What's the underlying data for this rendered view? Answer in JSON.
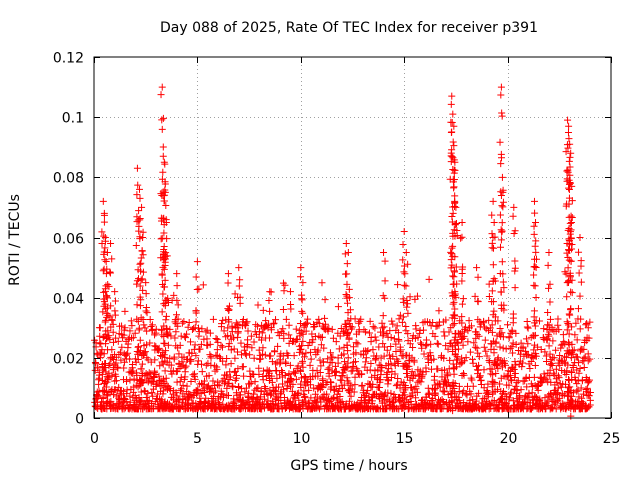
{
  "chart_data": {
    "type": "scatter",
    "title": "Day 088 of 2025, Rate Of TEC Index for receiver p391",
    "xlabel": "GPS time / hours",
    "ylabel": "ROTI / TECUs",
    "xlim": [
      0,
      25
    ],
    "ylim": [
      0,
      0.12
    ],
    "xticks": [
      0,
      5,
      10,
      15,
      20,
      25
    ],
    "xtick_labels": [
      "0",
      "5",
      "10",
      "15",
      "20",
      "25"
    ],
    "yticks": [
      0,
      0.02,
      0.04,
      0.06,
      0.08,
      0.1,
      0.12
    ],
    "ytick_labels": [
      "0",
      "0.02",
      "0.04",
      "0.06",
      "0.08",
      "0.1",
      "0.12"
    ],
    "grid": true,
    "marker": "+",
    "color": "#ff0000",
    "series": [
      {
        "name": "ROTI",
        "x": [
          0.1,
          0.3,
          0.45,
          0.5,
          0.55,
          0.6,
          0.65,
          0.8,
          1.0,
          1.5,
          2.1,
          2.2,
          2.3,
          2.35,
          2.5,
          3.3,
          3.35,
          3.4,
          3.45,
          3.5,
          4.0,
          5.0,
          6.5,
          7.0,
          8.5,
          9.5,
          10.0,
          10.1,
          12.2,
          12.3,
          12.35,
          14.0,
          15.0,
          15.1,
          17.3,
          17.35,
          17.4,
          17.45,
          17.5,
          17.8,
          18.5,
          19.3,
          19.35,
          19.7,
          19.75,
          20.3,
          21.3,
          21.35,
          22.0,
          22.9,
          22.95,
          23.0,
          23.05,
          23.1,
          23.5,
          23.9
        ],
        "y": [
          0.025,
          0.03,
          0.072,
          0.068,
          0.06,
          0.048,
          0.055,
          0.058,
          0.042,
          0.03,
          0.083,
          0.076,
          0.07,
          0.06,
          0.045,
          0.11,
          0.087,
          0.085,
          0.075,
          0.065,
          0.048,
          0.052,
          0.048,
          0.05,
          0.042,
          0.042,
          0.05,
          0.045,
          0.058,
          0.055,
          0.04,
          0.055,
          0.062,
          0.055,
          0.107,
          0.101,
          0.097,
          0.085,
          0.07,
          0.065,
          0.05,
          0.072,
          0.065,
          0.11,
          0.08,
          0.07,
          0.072,
          0.065,
          0.055,
          0.099,
          0.097,
          0.091,
          0.088,
          0.077,
          0.06,
          0.03
        ]
      }
    ],
    "notes": "Dense scatter of ROTI samples across 0-24 h, mostly between 0.003 and 0.03 TECUs with isolated peaks; the listed points are the readable peaks plus representative background samples."
  }
}
